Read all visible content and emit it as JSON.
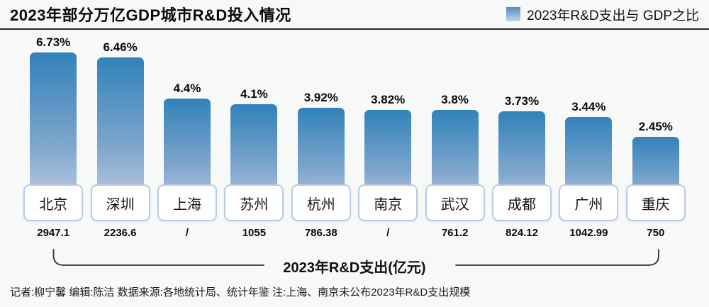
{
  "header": {
    "title": "2023年部分万亿GDP城市R&D投入情况",
    "legend": {
      "label": "2023年R&D支出与 GDP之比"
    }
  },
  "chart_data": {
    "type": "bar",
    "title": "2023年部分万亿GDP城市R&D投入情况",
    "categories": [
      "北京",
      "深圳",
      "上海",
      "苏州",
      "杭州",
      "南京",
      "武汉",
      "成都",
      "广州",
      "重庆"
    ],
    "series": [
      {
        "name": "2023年R&D支出与 GDP之比",
        "unit": "%",
        "values": [
          6.73,
          6.46,
          4.4,
          4.1,
          3.92,
          3.82,
          3.8,
          3.73,
          3.44,
          2.45
        ],
        "labels": [
          "6.73%",
          "6.46%",
          "4.4%",
          "4.1%",
          "3.92%",
          "3.82%",
          "3.8%",
          "3.73%",
          "3.44%",
          "2.45%"
        ]
      },
      {
        "name": "2023年R&D支出(亿元)",
        "unit": "亿元",
        "values": [
          2947.1,
          2236.6,
          null,
          1055,
          786.38,
          null,
          761.2,
          824.12,
          1042.99,
          750
        ],
        "labels": [
          "2947.1",
          "2236.6",
          "/",
          "1055",
          "786.38",
          "/",
          "761.2",
          "824.12",
          "1042.99",
          "750"
        ]
      }
    ],
    "xlabel": "2023年R&D支出(亿元)",
    "legend_position": "top-right",
    "grid": false,
    "note": "上海、南京未公布2023年R&D支出规模"
  },
  "axis_bracket": {
    "label": "2023年R&D支出(亿元)"
  },
  "footer": {
    "text": "记者:柳宁馨  编辑:陈洁  数据来源:各地统计局、统计年鉴  注:上海、南京未公布2023年R&D支出规模"
  },
  "colors": {
    "background": "#f7f8f8",
    "bar_top": "#3182ba",
    "bar_bottom": "#cdd8e8",
    "box_border": "#bdcbe0",
    "title_rule": "#2b2b2b",
    "bracket_line": "#333333",
    "text": "#0b0b0b"
  }
}
